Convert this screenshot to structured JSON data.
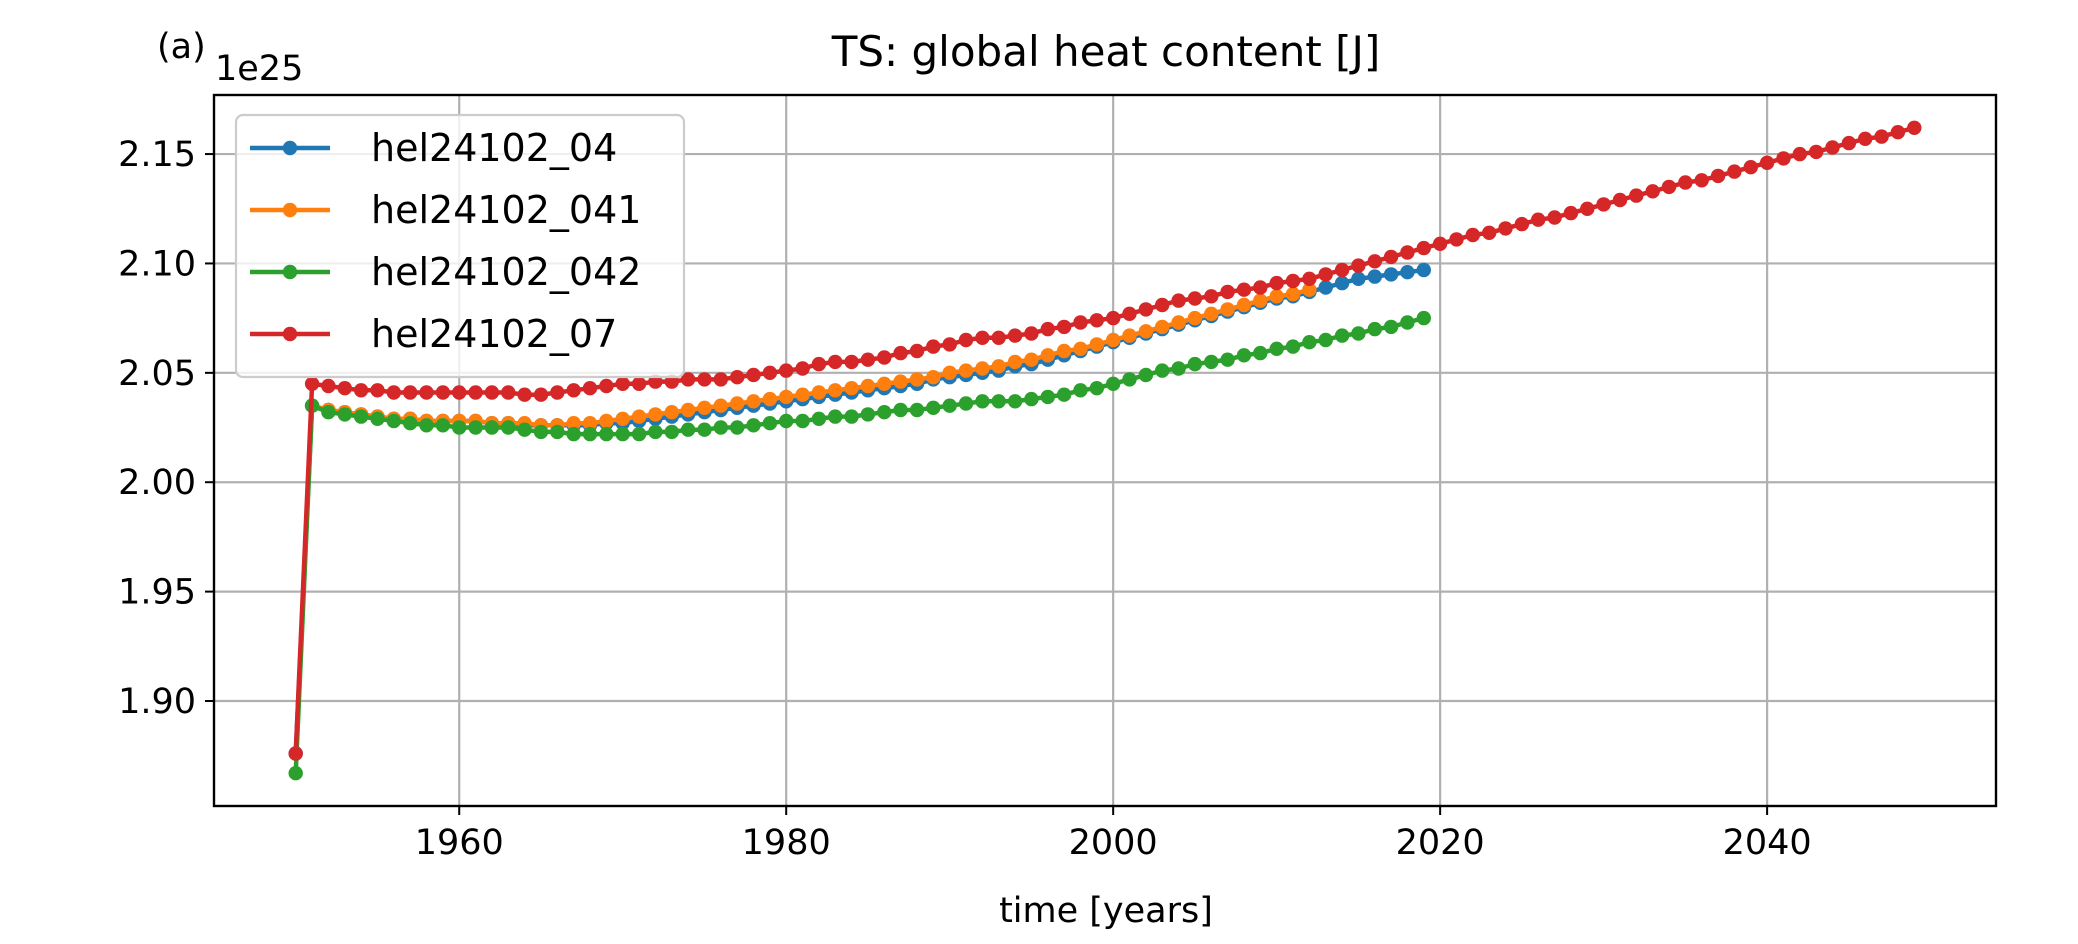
{
  "panel_label": "(a)",
  "chart_data": {
    "type": "line",
    "title": "TS: global heat content [J]",
    "xlabel": "time [years]",
    "ylabel": "",
    "y_offset_label": "1e25",
    "xlim": [
      1945,
      2054
    ],
    "ylim": [
      1.852,
      2.177
    ],
    "x_ticks": [
      1960,
      1980,
      2000,
      2020,
      2040
    ],
    "y_ticks": [
      1.9,
      1.95,
      2.0,
      2.05,
      2.1,
      2.15
    ],
    "x_tick_labels": [
      "1960",
      "1980",
      "2000",
      "2020",
      "2040"
    ],
    "y_tick_labels": [
      "1.90",
      "1.95",
      "2.00",
      "2.05",
      "2.10",
      "2.15"
    ],
    "grid": true,
    "legend_position": "top-left",
    "markers": "dot",
    "series": [
      {
        "name": "hel24102_04",
        "color": "#1f77b4",
        "x_start": 1950,
        "values": [
          1.876,
          2.035,
          2.033,
          2.032,
          2.031,
          2.03,
          2.029,
          2.029,
          2.028,
          2.028,
          2.028,
          2.028,
          2.027,
          2.027,
          2.026,
          2.026,
          2.026,
          2.026,
          2.026,
          2.027,
          2.027,
          2.028,
          2.029,
          2.03,
          2.031,
          2.032,
          2.033,
          2.034,
          2.035,
          2.036,
          2.037,
          2.038,
          2.039,
          2.04,
          2.041,
          2.042,
          2.043,
          2.044,
          2.045,
          2.047,
          2.048,
          2.049,
          2.05,
          2.051,
          2.053,
          2.054,
          2.056,
          2.058,
          2.06,
          2.062,
          2.064,
          2.066,
          2.068,
          2.07,
          2.072,
          2.074,
          2.076,
          2.078,
          2.08,
          2.082,
          2.084,
          2.085,
          2.087,
          2.089,
          2.091,
          2.093,
          2.094,
          2.095,
          2.096,
          2.097
        ]
      },
      {
        "name": "hel24102_041",
        "color": "#ff7f0e",
        "x_start": 1951,
        "values": [
          2.035,
          2.033,
          2.032,
          2.031,
          2.03,
          2.029,
          2.029,
          2.028,
          2.028,
          2.028,
          2.028,
          2.027,
          2.027,
          2.027,
          2.026,
          2.026,
          2.027,
          2.027,
          2.028,
          2.029,
          2.03,
          2.031,
          2.032,
          2.033,
          2.034,
          2.035,
          2.036,
          2.037,
          2.038,
          2.039,
          2.04,
          2.041,
          2.042,
          2.043,
          2.044,
          2.045,
          2.046,
          2.047,
          2.048,
          2.05,
          2.051,
          2.052,
          2.053,
          2.055,
          2.056,
          2.058,
          2.06,
          2.061,
          2.063,
          2.065,
          2.067,
          2.069,
          2.071,
          2.073,
          2.075,
          2.077,
          2.079,
          2.081,
          2.083,
          2.085,
          2.086,
          2.088
        ]
      },
      {
        "name": "hel24102_042",
        "color": "#2ca02c",
        "x_start": 1950,
        "values": [
          1.867,
          2.035,
          2.032,
          2.031,
          2.03,
          2.029,
          2.028,
          2.027,
          2.026,
          2.026,
          2.025,
          2.025,
          2.025,
          2.025,
          2.024,
          2.023,
          2.023,
          2.022,
          2.022,
          2.022,
          2.022,
          2.022,
          2.023,
          2.023,
          2.024,
          2.024,
          2.025,
          2.025,
          2.026,
          2.027,
          2.028,
          2.028,
          2.029,
          2.03,
          2.03,
          2.031,
          2.032,
          2.033,
          2.033,
          2.034,
          2.035,
          2.036,
          2.037,
          2.037,
          2.037,
          2.038,
          2.039,
          2.04,
          2.042,
          2.043,
          2.045,
          2.047,
          2.049,
          2.051,
          2.052,
          2.054,
          2.055,
          2.056,
          2.058,
          2.059,
          2.061,
          2.062,
          2.064,
          2.065,
          2.067,
          2.068,
          2.07,
          2.071,
          2.073,
          2.075
        ]
      },
      {
        "name": "hel24102_07",
        "color": "#d62728",
        "x_start": 1950,
        "values": [
          1.876,
          2.045,
          2.044,
          2.043,
          2.042,
          2.042,
          2.041,
          2.041,
          2.041,
          2.041,
          2.041,
          2.041,
          2.041,
          2.041,
          2.04,
          2.04,
          2.041,
          2.042,
          2.043,
          2.044,
          2.045,
          2.045,
          2.046,
          2.046,
          2.047,
          2.047,
          2.047,
          2.048,
          2.049,
          2.05,
          2.051,
          2.052,
          2.054,
          2.055,
          2.055,
          2.056,
          2.057,
          2.059,
          2.06,
          2.062,
          2.063,
          2.065,
          2.066,
          2.066,
          2.067,
          2.068,
          2.07,
          2.071,
          2.073,
          2.074,
          2.075,
          2.077,
          2.079,
          2.081,
          2.083,
          2.084,
          2.085,
          2.087,
          2.088,
          2.089,
          2.091,
          2.092,
          2.093,
          2.095,
          2.097,
          2.099,
          2.101,
          2.103,
          2.105,
          2.107,
          2.109,
          2.111,
          2.113,
          2.114,
          2.116,
          2.118,
          2.12,
          2.121,
          2.123,
          2.125,
          2.127,
          2.129,
          2.131,
          2.133,
          2.135,
          2.137,
          2.138,
          2.14,
          2.142,
          2.144,
          2.146,
          2.148,
          2.15,
          2.151,
          2.153,
          2.155,
          2.157,
          2.158,
          2.16,
          2.162
        ]
      }
    ]
  }
}
